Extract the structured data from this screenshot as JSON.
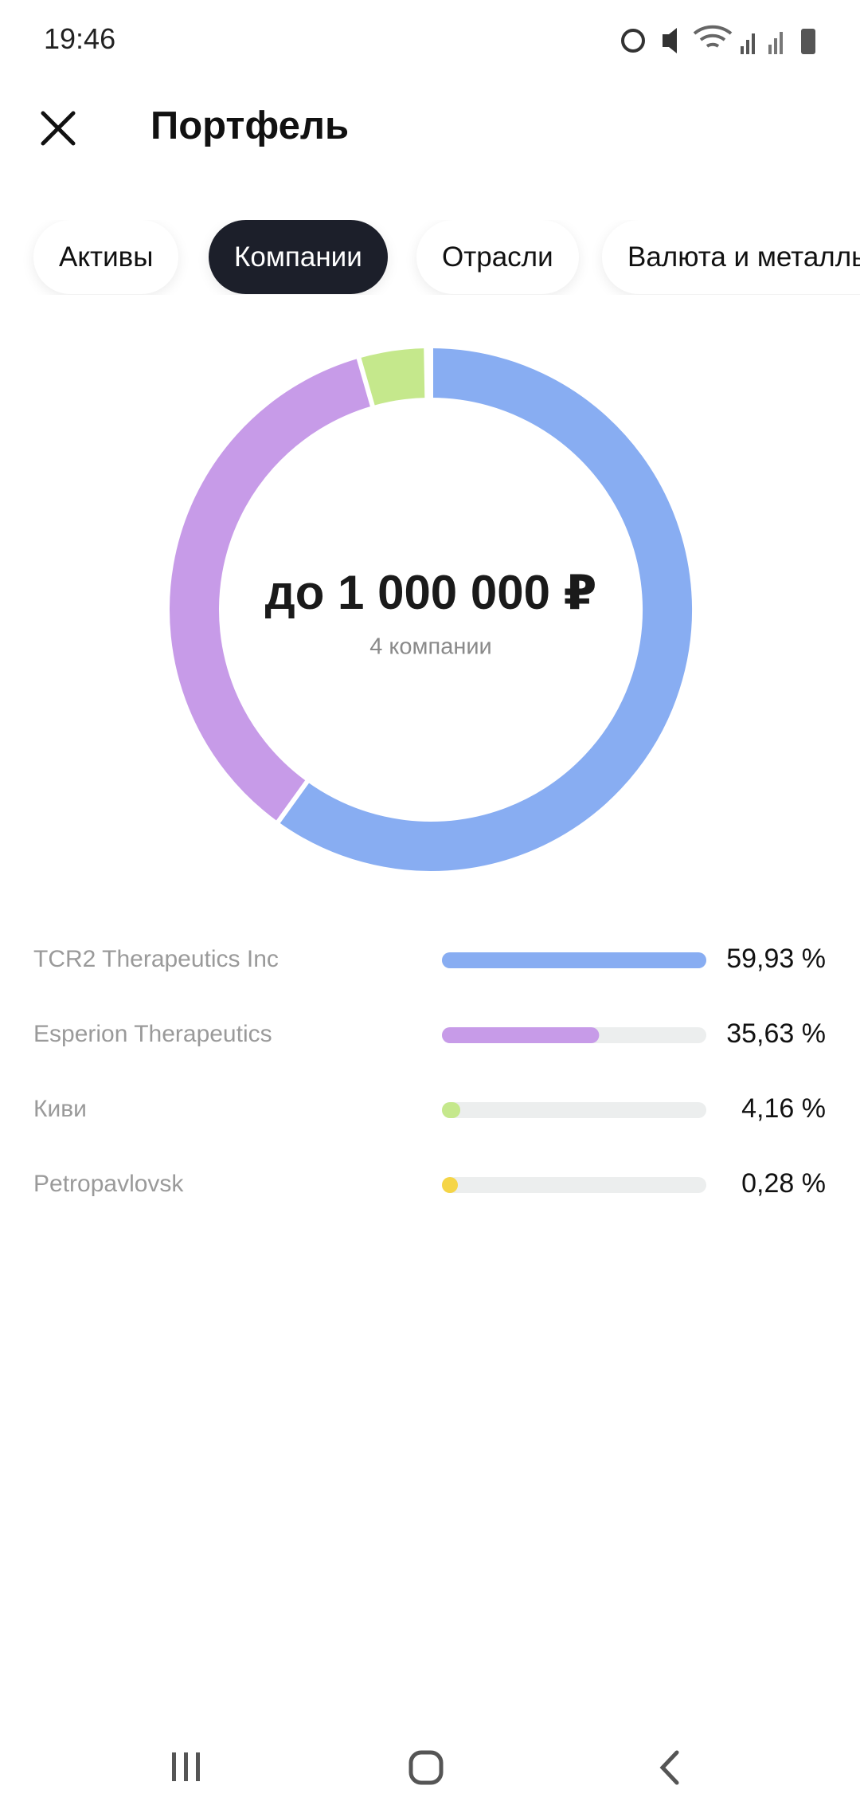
{
  "status_bar": {
    "time": "19:46"
  },
  "header": {
    "title": "Портфель"
  },
  "tabs": [
    {
      "label": "Активы",
      "active": false
    },
    {
      "label": "Компании",
      "active": true
    },
    {
      "label": "Отрасли",
      "active": false
    },
    {
      "label": "Валюта и металлы",
      "active": false
    }
  ],
  "chart_data": {
    "type": "donut",
    "center_title": "до 1 000 000 ₽",
    "center_subtitle": "4 компании",
    "categories": [
      "TCR2 Therapeutics Inc",
      "Esperion Therapeutics",
      "Киви",
      "Petropavlovsk"
    ],
    "values": [
      59.93,
      35.63,
      4.16,
      0.28
    ],
    "value_labels": [
      "59,93 %",
      "35,63 %",
      "4,16 %",
      "0,28 %"
    ],
    "colors": [
      "#88adf2",
      "#c79be8",
      "#c5e88c",
      "#f5d547"
    ]
  }
}
